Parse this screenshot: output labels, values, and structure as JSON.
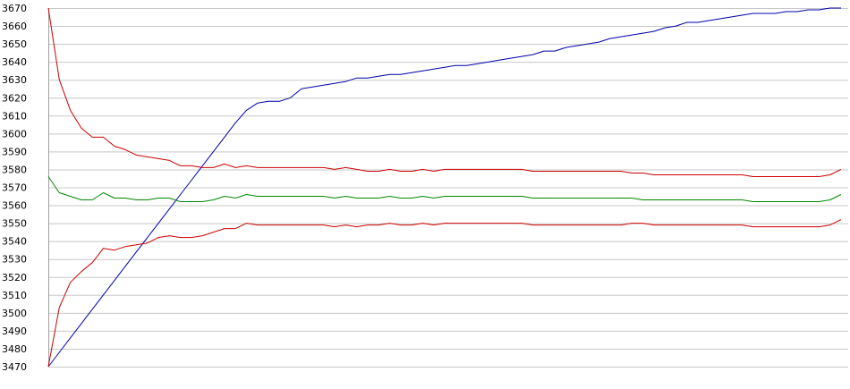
{
  "chart_data": {
    "type": "line",
    "title": "",
    "xlabel": "",
    "ylabel": "",
    "ylim": [
      3470,
      3670
    ],
    "yticks": [
      3470,
      3480,
      3490,
      3500,
      3510,
      3520,
      3530,
      3540,
      3550,
      3560,
      3570,
      3580,
      3590,
      3600,
      3610,
      3620,
      3630,
      3640,
      3650,
      3660,
      3670
    ],
    "grid": true,
    "legend": "none",
    "x": [
      0,
      1,
      2,
      3,
      4,
      5,
      6,
      7,
      8,
      9,
      10,
      11,
      12,
      13,
      14,
      15,
      16,
      17,
      18,
      19,
      20,
      21,
      22,
      23,
      24,
      25,
      26,
      27,
      28,
      29,
      30,
      31,
      32,
      33,
      34,
      35,
      36,
      37,
      38,
      39,
      40,
      41,
      42,
      43,
      44,
      45,
      46,
      47,
      48,
      49,
      50,
      51,
      52,
      53,
      54,
      55,
      56,
      57,
      58,
      59,
      60,
      61,
      62,
      63,
      64,
      65,
      66,
      67,
      68,
      69,
      70,
      71,
      72
    ],
    "series": [
      {
        "color": "#0000aa",
        "values": [
          3470,
          3478,
          3486,
          3494,
          3502,
          3510,
          3518,
          3526,
          3534,
          3542,
          3550,
          3558,
          3566,
          3574,
          3582,
          3590,
          3598,
          3606,
          3613,
          3617,
          3618,
          3618,
          3620,
          3625,
          3626,
          3627,
          3628,
          3629,
          3631,
          3631,
          3632,
          3633,
          3633,
          3634,
          3635,
          3636,
          3637,
          3638,
          3638,
          3639,
          3640,
          3641,
          3642,
          3643,
          3644,
          3646,
          3646,
          3648,
          3649,
          3650,
          3651,
          3653,
          3654,
          3655,
          3656,
          3657,
          3659,
          3660,
          3662,
          3662,
          3663,
          3664,
          3665,
          3666,
          3667,
          3667,
          3667,
          3668,
          3668,
          3669,
          3669,
          3670,
          3670
        ]
      },
      {
        "color": "#cc0000",
        "values": [
          3670,
          3630,
          3613,
          3603,
          3598,
          3598,
          3593,
          3591,
          3588,
          3587,
          3586,
          3585,
          3582,
          3582,
          3581,
          3581,
          3583,
          3581,
          3582,
          3581,
          3581,
          3581,
          3581,
          3581,
          3581,
          3581,
          3580,
          3581,
          3580,
          3579,
          3579,
          3580,
          3579,
          3579,
          3580,
          3579,
          3580,
          3580,
          3580,
          3580,
          3580,
          3580,
          3580,
          3580,
          3579,
          3579,
          3579,
          3579,
          3579,
          3579,
          3579,
          3579,
          3579,
          3578,
          3578,
          3577,
          3577,
          3577,
          3577,
          3577,
          3577,
          3577,
          3577,
          3577,
          3576,
          3576,
          3576,
          3576,
          3576,
          3576,
          3576,
          3577,
          3580
        ]
      },
      {
        "color": "#008800",
        "values": [
          3576,
          3567,
          3565,
          3563,
          3563,
          3567,
          3564,
          3564,
          3563,
          3563,
          3564,
          3564,
          3562,
          3562,
          3562,
          3563,
          3565,
          3564,
          3566,
          3565,
          3565,
          3565,
          3565,
          3565,
          3565,
          3565,
          3564,
          3565,
          3564,
          3564,
          3564,
          3565,
          3564,
          3564,
          3565,
          3564,
          3565,
          3565,
          3565,
          3565,
          3565,
          3565,
          3565,
          3565,
          3564,
          3564,
          3564,
          3564,
          3564,
          3564,
          3564,
          3564,
          3564,
          3564,
          3563,
          3563,
          3563,
          3563,
          3563,
          3563,
          3563,
          3563,
          3563,
          3563,
          3562,
          3562,
          3562,
          3562,
          3562,
          3562,
          3562,
          3563,
          3566
        ]
      },
      {
        "color": "#cc0000",
        "values": [
          3470,
          3503,
          3517,
          3523,
          3528,
          3536,
          3535,
          3537,
          3538,
          3539,
          3542,
          3543,
          3542,
          3542,
          3543,
          3545,
          3547,
          3547,
          3550,
          3549,
          3549,
          3549,
          3549,
          3549,
          3549,
          3549,
          3548,
          3549,
          3548,
          3549,
          3549,
          3550,
          3549,
          3549,
          3550,
          3549,
          3550,
          3550,
          3550,
          3550,
          3550,
          3550,
          3550,
          3550,
          3549,
          3549,
          3549,
          3549,
          3549,
          3549,
          3549,
          3549,
          3549,
          3550,
          3550,
          3549,
          3549,
          3549,
          3549,
          3549,
          3549,
          3549,
          3549,
          3549,
          3548,
          3548,
          3548,
          3548,
          3548,
          3548,
          3548,
          3549,
          3552
        ]
      }
    ]
  }
}
